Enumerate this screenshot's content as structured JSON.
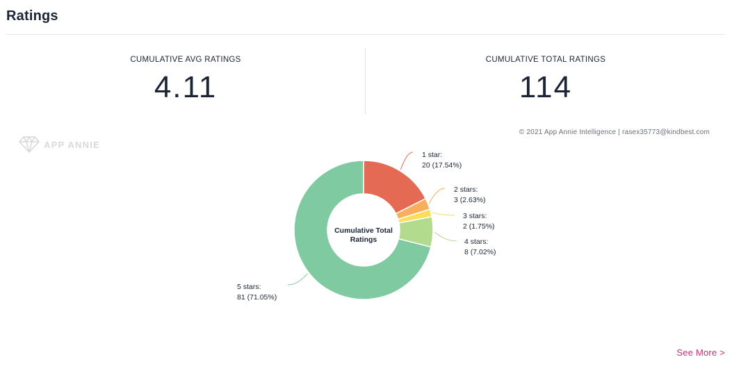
{
  "page": {
    "title": "Ratings",
    "see_more": "See More >"
  },
  "stats": {
    "avg_label": "CUMULATIVE AVG RATINGS",
    "avg_value": "4.11",
    "total_label": "CUMULATIVE TOTAL RATINGS",
    "total_value": "114"
  },
  "chart_meta": {
    "copyright": "© 2021 App Annie Intelligence | rasex35773@kindbest.com",
    "watermark": "APP ANNIE",
    "watermark_icon": "diamond-logo-icon"
  },
  "chart_data": {
    "type": "pie",
    "variant": "donut",
    "center_label": "Cumulative Total Ratings",
    "total": 114,
    "slices": [
      {
        "label": "1 star:",
        "value": 20,
        "percent_label": "20 (17.54%)",
        "color": "#e56a54"
      },
      {
        "label": "2 stars:",
        "value": 3,
        "percent_label": "3 (2.63%)",
        "color": "#f7af5b"
      },
      {
        "label": "3 stars:",
        "value": 2,
        "percent_label": "2 (1.75%)",
        "color": "#fbdd5c"
      },
      {
        "label": "4 stars:",
        "value": 8,
        "percent_label": "8 (7.02%)",
        "color": "#b2db8e"
      },
      {
        "label": "5 stars:",
        "value": 81,
        "percent_label": "81 (71.05%)",
        "color": "#80caa2"
      }
    ]
  }
}
